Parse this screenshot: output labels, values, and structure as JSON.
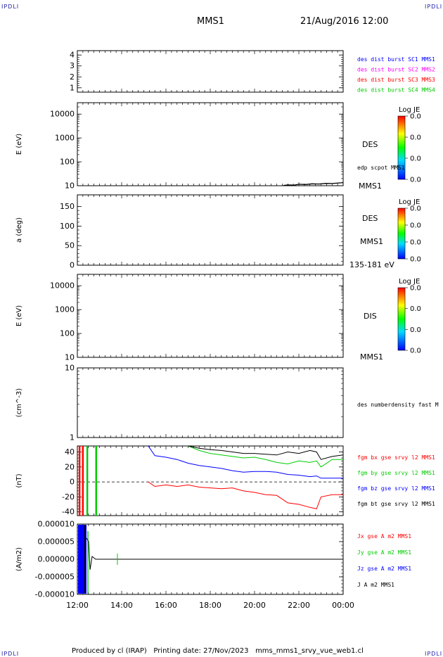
{
  "header": {
    "corner_left": "IPDLI",
    "corner_right": "IPDLI",
    "mission": "MMS1",
    "datetime": "21/Aug/2016 12:00"
  },
  "footer": {
    "produced_by": "Produced by cl (IRAP)",
    "printing_date": "Printing date: 27/Nov/2023",
    "file_name": "mms_mms1_srvy_vue_web1.cl",
    "corner_left": "IPDLI",
    "corner_right": "IPDLI"
  },
  "chart_data": [
    {
      "type": "line",
      "panel": "burst",
      "ylabel": "",
      "yticks": [
        "1",
        "2",
        "3",
        "4"
      ],
      "ylim": [
        0.6,
        4.4
      ],
      "legend": [
        {
          "label": "des dist burst SC1 MMS1",
          "color": "#0000ff"
        },
        {
          "label": "des dist burst SC2 MMS2",
          "color": "#ff00ff"
        },
        {
          "label": "des dist burst SC3 MMS3",
          "color": "#ff0000"
        },
        {
          "label": "des dist burst SC4 MMS4",
          "color": "#00cc00"
        }
      ],
      "series": []
    },
    {
      "type": "heatmap",
      "panel": "des-energy",
      "ylabel": "E (eV)",
      "yscale": "log",
      "ylim": [
        10,
        30000
      ],
      "yticks": [
        "10",
        "100",
        "1000",
        "10000"
      ],
      "right_labels": [
        "DES",
        "MMS1"
      ],
      "colorbar": {
        "title": "Log JE",
        "values": [
          "0.0",
          "0.0",
          "0.0",
          "0.0"
        ]
      },
      "overlay": {
        "name": "edp scpot MMS1",
        "x": [
          21.3,
          21.5,
          21.8,
          22.0,
          22.3,
          22.6,
          22.9,
          23.2,
          23.5,
          23.8,
          24.0
        ],
        "y": [
          10.3,
          10.8,
          10.6,
          11.5,
          11.2,
          12.0,
          11.8,
          12.5,
          12.3,
          13.0,
          13.5
        ]
      }
    },
    {
      "type": "heatmap",
      "panel": "des-pitch",
      "ylabel": "a (deg)",
      "ylim": [
        0,
        180
      ],
      "yticks": [
        "0",
        "50",
        "100",
        "150"
      ],
      "right_labels": [
        "DES",
        "MMS1",
        "135-181 eV"
      ],
      "colorbar": {
        "title": "Log JE",
        "values": [
          "0.0",
          "0.0",
          "0.0",
          "0.0"
        ]
      }
    },
    {
      "type": "heatmap",
      "panel": "dis-energy",
      "ylabel": "E (eV)",
      "yscale": "log",
      "ylim": [
        10,
        30000
      ],
      "yticks": [
        "10",
        "100",
        "1000",
        "10000"
      ],
      "right_labels": [
        "DIS",
        "MMS1"
      ],
      "colorbar": {
        "title": "Log JE",
        "values": [
          "0.0",
          "0.0",
          "0.0",
          "0.0"
        ]
      }
    },
    {
      "type": "line",
      "panel": "density",
      "ylabel": "(cm^-3)",
      "yscale": "log",
      "ylim": [
        1,
        10
      ],
      "yticks": [
        "1",
        "10"
      ],
      "right_labels": [
        "des numberdensity fast M"
      ],
      "series": []
    },
    {
      "type": "line",
      "panel": "fgm",
      "ylabel": "(nT)",
      "ylim": [
        -45,
        48
      ],
      "yticks": [
        "-40",
        "-20",
        "0",
        "20",
        "40"
      ],
      "x": [
        15.2,
        15.5,
        16.0,
        16.5,
        17.0,
        17.5,
        18.0,
        18.5,
        19.0,
        19.5,
        20.0,
        20.5,
        21.0,
        21.5,
        22.0,
        22.5,
        22.8,
        23.0,
        23.5,
        24.0
      ],
      "series": [
        {
          "name": "fgm bx gse srvy l2 MMS1",
          "color": "#ff0000",
          "values": [
            0,
            -6,
            -4,
            -6,
            -4,
            -7,
            -8,
            -9,
            -8,
            -12,
            -14,
            -17,
            -18,
            -28,
            -30,
            -34,
            -36,
            -20,
            -17,
            -17
          ]
        },
        {
          "name": "fgm by gse srvy l2 MMS1",
          "color": "#00cc00",
          "values": [
            null,
            null,
            null,
            null,
            48,
            42,
            38,
            36,
            34,
            32,
            33,
            30,
            26,
            24,
            28,
            26,
            28,
            20,
            30,
            30
          ]
        },
        {
          "name": "fgm bz gse srvy l2 MMS1",
          "color": "#0000ff",
          "values": [
            48,
            35,
            33,
            30,
            25,
            22,
            20,
            18,
            15,
            13,
            14,
            14,
            13,
            10,
            9,
            7,
            8,
            5,
            5,
            5
          ]
        },
        {
          "name": "fgm bt gse srvy l2 MMS1",
          "color": "#000000",
          "values": [
            null,
            null,
            null,
            null,
            48,
            45,
            43,
            42,
            40,
            38,
            38,
            37,
            36,
            40,
            38,
            42,
            40,
            30,
            34,
            36
          ]
        }
      ],
      "spikes": [
        {
          "x": 12.1,
          "color": "#ff0000"
        },
        {
          "x": 12.25,
          "color": "#ff0000"
        },
        {
          "x": 12.45,
          "color": "#00cc00"
        },
        {
          "x": 12.85,
          "color": "#00cc00"
        }
      ]
    },
    {
      "type": "line",
      "panel": "current",
      "ylabel": "(A/m2)",
      "ylim": [
        -1e-05,
        1e-05
      ],
      "yticks": [
        "-0.000010",
        "-0.000005",
        "0.000000",
        "0.000005",
        "0.000010"
      ],
      "xlabel": "",
      "xticks": [
        "12:00",
        "14:00",
        "16:00",
        "18:00",
        "20:00",
        "22:00",
        "00:00"
      ],
      "xlim": [
        12,
        24
      ],
      "series": [
        {
          "name": "Jx gse A m2 MMS1",
          "color": "#ff0000",
          "values": []
        },
        {
          "name": "Jy gse A m2 MMS1",
          "color": "#00cc00",
          "values": []
        },
        {
          "name": "Jz gse A m2 MMS1",
          "color": "#0000ff",
          "values": []
        },
        {
          "name": "J A m2 MMS1",
          "color": "#000000",
          "values": []
        }
      ]
    }
  ]
}
